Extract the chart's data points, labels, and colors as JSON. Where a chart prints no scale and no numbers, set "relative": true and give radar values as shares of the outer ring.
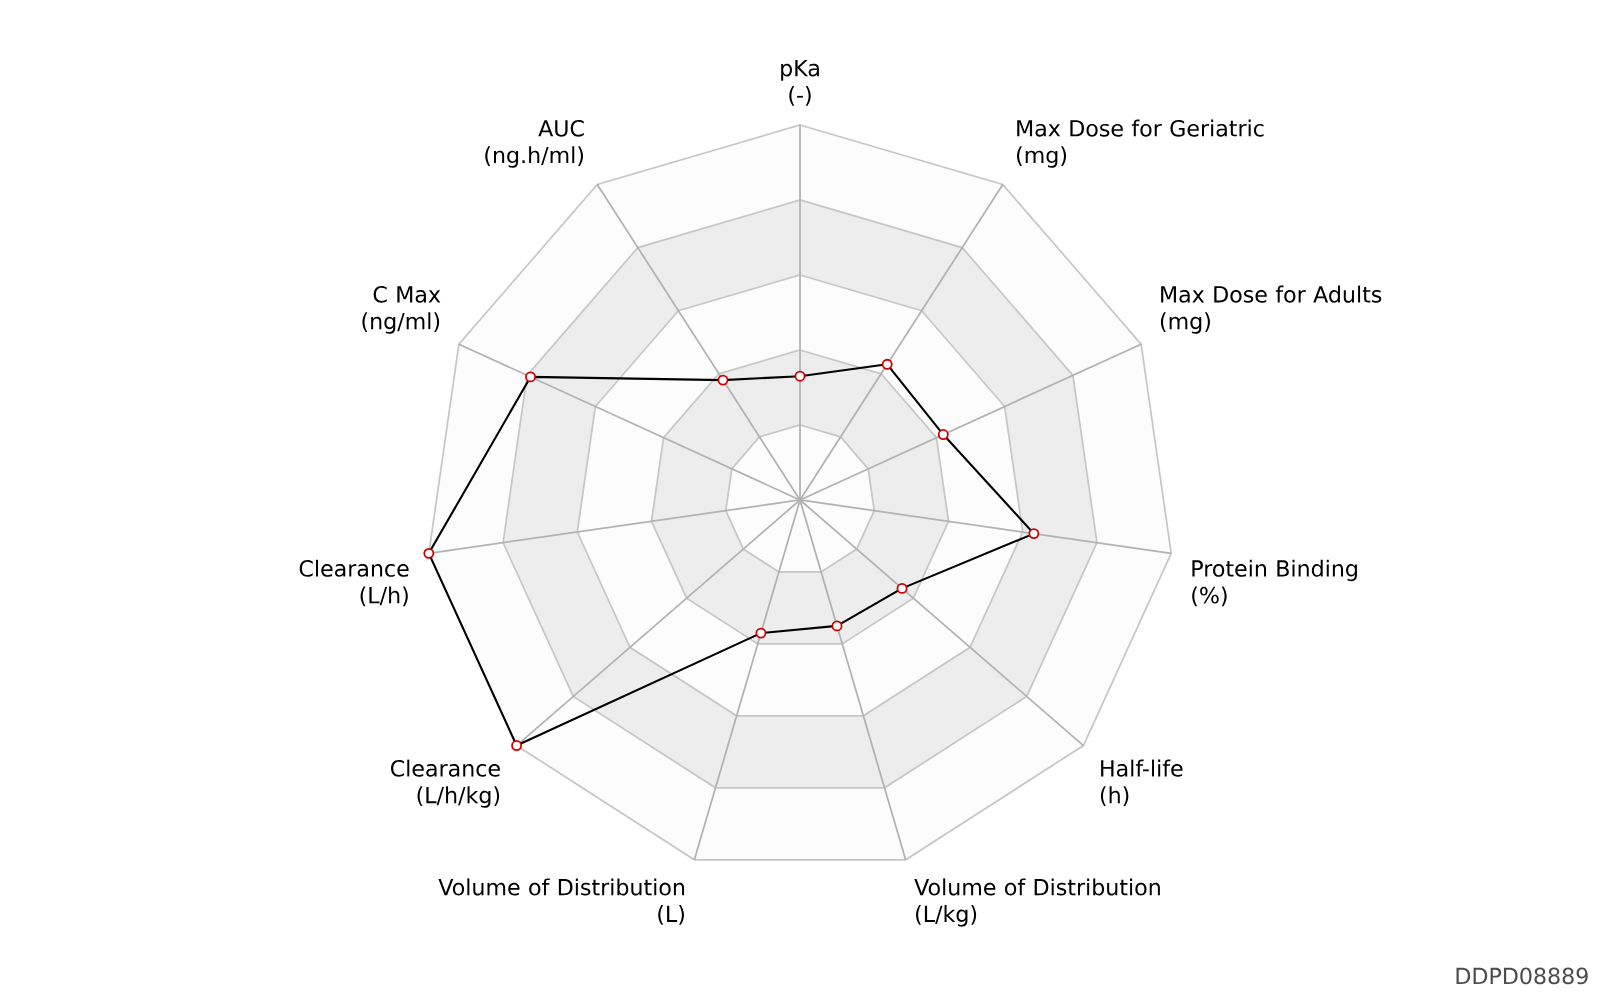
{
  "chart_data": {
    "type": "radar",
    "relative": true,
    "marker": "circle",
    "categories": [
      "pKa (-)",
      "Max Dose for Geriatric (mg)",
      "Max Dose for Adults (mg)",
      "Protein Binding (%)",
      "Half-life (h)",
      "Volume of Distribution (L/kg)",
      "Volume of Distribution (L)",
      "Clearance (L/h/kg)",
      "Clearance (L/h)",
      "C Max (ng/ml)",
      "AUC (ng.h/ml)"
    ],
    "series": [
      {
        "color": "#000000",
        "values": [
          0.33,
          0.43,
          0.42,
          0.63,
          0.36,
          0.35,
          0.37,
          1.0,
          1.0,
          0.79,
          0.38
        ]
      }
    ],
    "annotations": [
      "DDPD08889"
    ]
  }
}
